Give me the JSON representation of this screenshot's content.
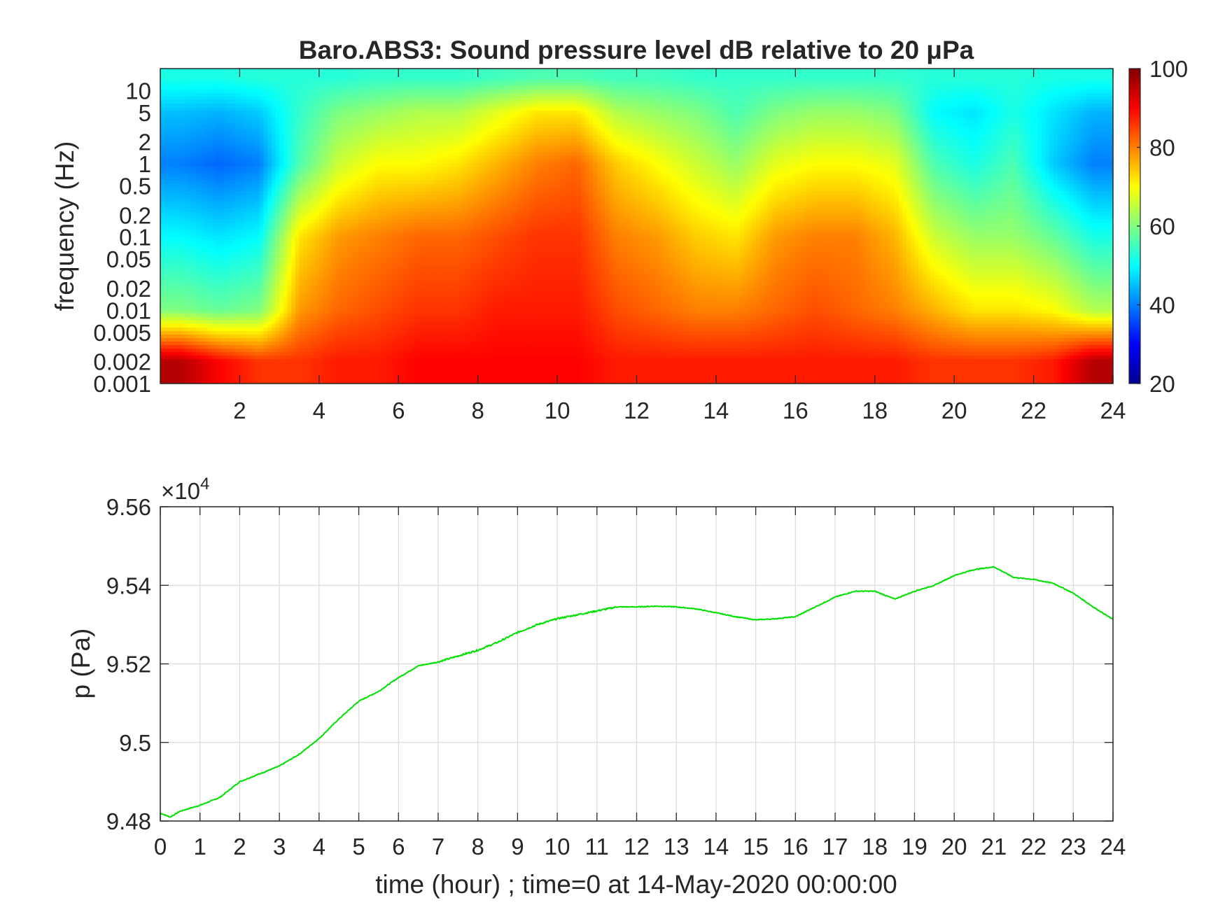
{
  "chart_data": [
    {
      "type": "heatmap",
      "title": "Baro.ABS3: Sound pressure level dB relative to 20 μPa",
      "xlabel": "",
      "ylabel": "frequency (Hz)",
      "xlim": [
        0,
        24
      ],
      "x_scale": "linear",
      "y_scale": "log",
      "ylim": [
        0.001,
        20
      ],
      "x_ticks": [
        2,
        4,
        6,
        8,
        10,
        12,
        14,
        16,
        18,
        20,
        22,
        24
      ],
      "y_ticks": [
        10,
        5,
        2,
        1,
        0.5,
        0.2,
        0.1,
        0.05,
        0.02,
        0.01,
        0.005,
        0.002,
        0.001
      ],
      "colorbar": {
        "min": 20,
        "max": 100,
        "ticks": [
          100,
          80,
          60,
          40,
          20
        ],
        "colormap": "jet"
      },
      "hours": [
        0.5,
        1.5,
        2.5,
        3.5,
        4.5,
        5.5,
        6.5,
        7.5,
        8.5,
        9.5,
        10.5,
        11.5,
        12.5,
        13.5,
        14.5,
        15.5,
        16.5,
        17.5,
        18.5,
        19.5,
        20.5,
        21.5,
        22.5,
        23.5
      ],
      "frequency_bands_hz": [
        15,
        5,
        1,
        0.1,
        0.01,
        0.002
      ],
      "level_db_by_band": [
        [
          52,
          52,
          53,
          53,
          53,
          54,
          54,
          54,
          55,
          56,
          56,
          55,
          55,
          54,
          54,
          54,
          54,
          54,
          54,
          53,
          53,
          53,
          52,
          52
        ],
        [
          45,
          44,
          46,
          54,
          60,
          62,
          64,
          64,
          68,
          72,
          72,
          64,
          62,
          60,
          56,
          60,
          62,
          62,
          60,
          50,
          48,
          52,
          48,
          44
        ],
        [
          40,
          38,
          40,
          56,
          66,
          70,
          70,
          72,
          76,
          80,
          82,
          74,
          70,
          66,
          62,
          68,
          70,
          70,
          68,
          56,
          52,
          56,
          46,
          40
        ],
        [
          50,
          48,
          50,
          72,
          78,
          80,
          82,
          82,
          84,
          86,
          86,
          80,
          78,
          74,
          72,
          78,
          80,
          80,
          76,
          66,
          62,
          62,
          58,
          52
        ],
        [
          60,
          58,
          60,
          78,
          82,
          84,
          86,
          86,
          88,
          88,
          88,
          84,
          82,
          80,
          80,
          82,
          84,
          82,
          80,
          76,
          72,
          72,
          70,
          64
        ],
        [
          96,
          90,
          86,
          86,
          88,
          88,
          90,
          90,
          90,
          90,
          90,
          88,
          88,
          88,
          88,
          88,
          88,
          88,
          88,
          86,
          86,
          86,
          88,
          96
        ]
      ]
    },
    {
      "type": "line",
      "title": "",
      "xlabel": "time (hour) ; time=0 at 14-May-2020 00:00:00",
      "ylabel": "p (Pa)",
      "y_exponent_label": "×10",
      "y_exponent_power": "4",
      "xlim": [
        0,
        24
      ],
      "ylim": [
        94800,
        95600
      ],
      "x_ticks": [
        0,
        1,
        2,
        3,
        4,
        5,
        6,
        7,
        8,
        9,
        10,
        11,
        12,
        13,
        14,
        15,
        16,
        17,
        18,
        19,
        20,
        21,
        22,
        23,
        24
      ],
      "y_tick_labels": [
        "9.56",
        "9.54",
        "9.52",
        "9.5",
        "9.48"
      ],
      "y_tick_values": [
        95600,
        95400,
        95200,
        95000,
        94800
      ],
      "grid": true,
      "line_color": "#00e000",
      "series": [
        {
          "x": [
            0,
            0.25,
            0.5,
            1,
            1.5,
            2,
            2.5,
            3,
            3.5,
            4,
            4.5,
            5,
            5.5,
            6,
            6.5,
            7,
            7.5,
            8,
            8.5,
            9,
            9.5,
            10,
            10.5,
            11,
            11.5,
            12,
            12.5,
            13,
            13.5,
            14,
            14.5,
            15,
            15.5,
            16,
            16.5,
            17,
            17.5,
            18,
            18.5,
            19,
            19.5,
            20,
            20.5,
            21,
            21.5,
            22,
            22.5,
            23,
            23.5,
            24
          ],
          "y": [
            94820,
            94810,
            94825,
            94840,
            94860,
            94900,
            94920,
            94940,
            94970,
            95010,
            95060,
            95105,
            95130,
            95165,
            95195,
            95205,
            95220,
            95235,
            95255,
            95280,
            95300,
            95315,
            95325,
            95335,
            95345,
            95345,
            95347,
            95345,
            95340,
            95330,
            95320,
            95312,
            95315,
            95320,
            95345,
            95370,
            95385,
            95385,
            95365,
            95385,
            95400,
            95425,
            95440,
            95447,
            95420,
            95415,
            95405,
            95380,
            95345,
            95313
          ]
        }
      ]
    }
  ]
}
